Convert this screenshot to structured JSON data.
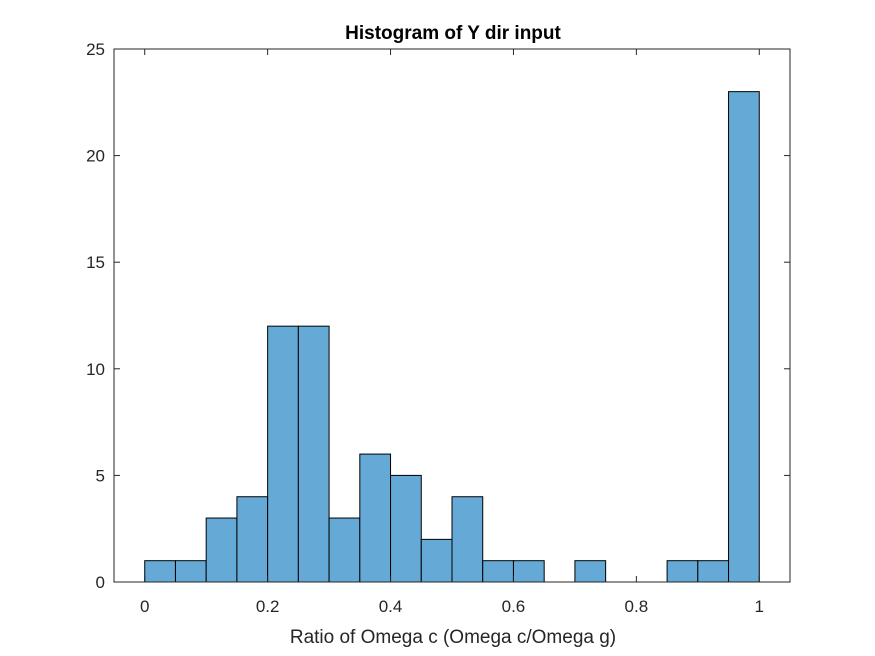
{
  "chart_data": {
    "type": "bar",
    "title": "Histogram of Y dir input",
    "xlabel": "Ratio of Omega c (Omega c/Omega g)",
    "ylabel": "",
    "xlim": [
      -0.05,
      1.05
    ],
    "ylim": [
      0,
      25
    ],
    "xticks": [
      0,
      0.2,
      0.4,
      0.6,
      0.8,
      1
    ],
    "xtick_labels": [
      "0",
      "0.2",
      "0.4",
      "0.6",
      "0.8",
      "1"
    ],
    "yticks": [
      0,
      5,
      10,
      15,
      20,
      25
    ],
    "ytick_labels": [
      "0",
      "5",
      "10",
      "15",
      "20",
      "25"
    ],
    "bin_width": 0.05,
    "bin_edges": [
      0,
      0.05,
      0.1,
      0.15,
      0.2,
      0.25,
      0.3,
      0.35,
      0.4,
      0.45,
      0.5,
      0.55,
      0.6,
      0.65,
      0.7,
      0.75,
      0.8,
      0.85,
      0.9,
      0.95,
      1.0
    ],
    "counts": [
      1,
      1,
      3,
      4,
      12,
      12,
      3,
      6,
      5,
      2,
      4,
      1,
      1,
      0,
      1,
      0,
      0,
      1,
      1,
      23
    ],
    "grid": false,
    "colors": {
      "bar_fill": "#65a9d7",
      "bar_edge": "#000000",
      "axes": "#262626"
    }
  }
}
